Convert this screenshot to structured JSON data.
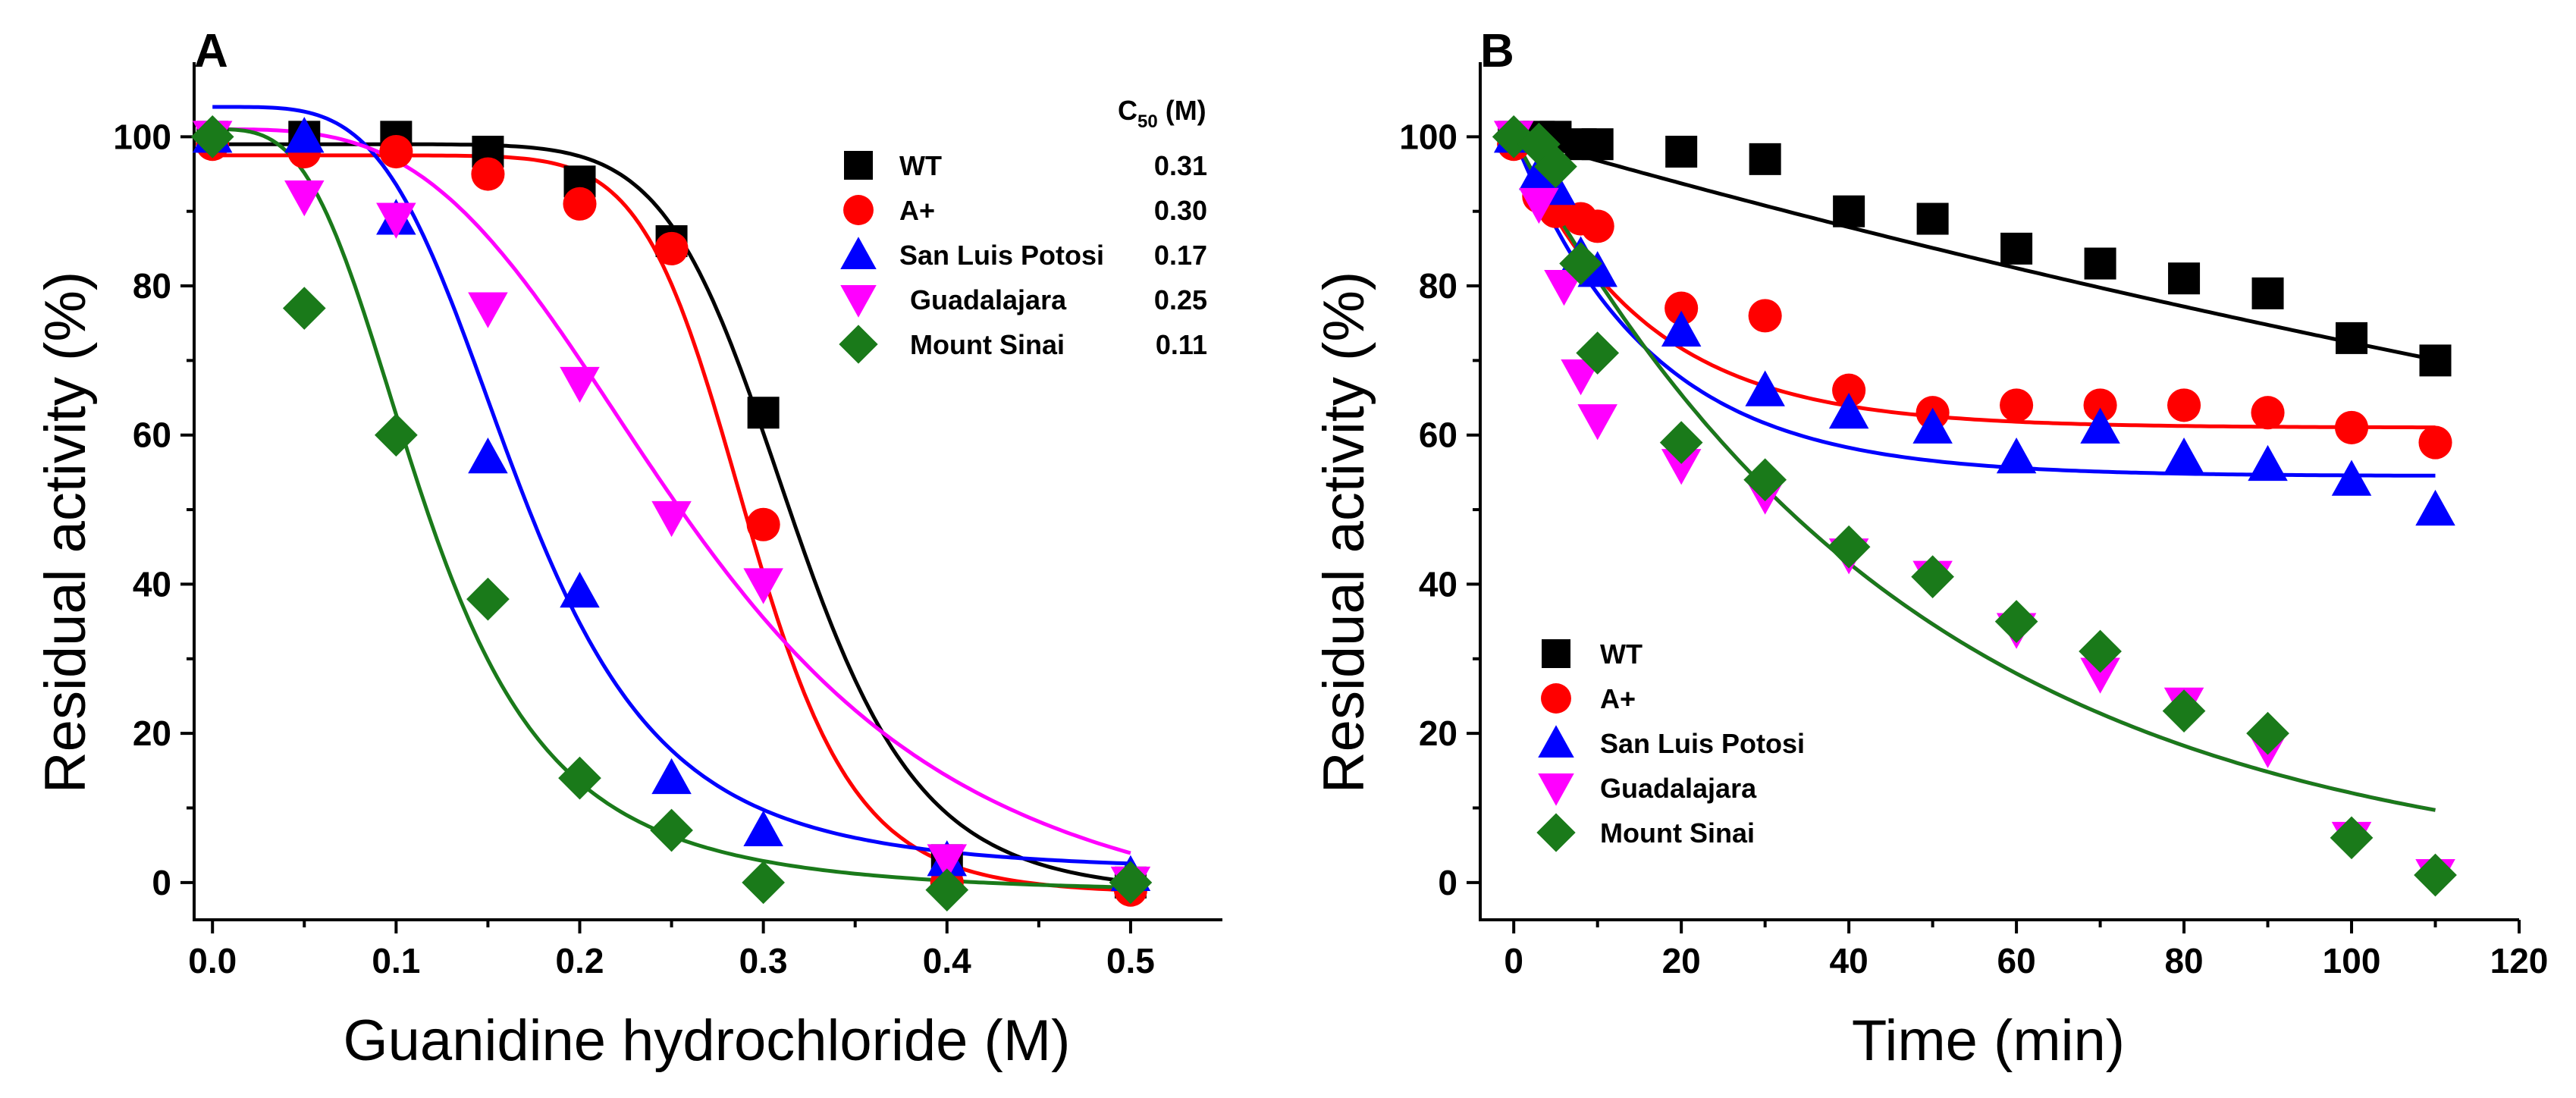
{
  "chart_data": [
    {
      "type": "scatter",
      "panel_label": "A",
      "xlabel": "Guanidine hydrochloride (M)",
      "ylabel": "Residual activity (%)",
      "xlim": [
        -0.01,
        0.55
      ],
      "ylim": [
        -5,
        110
      ],
      "xticks": [
        0.0,
        0.1,
        0.2,
        0.3,
        0.4,
        0.5
      ],
      "xtick_labels": [
        "0.0",
        "0.1",
        "0.2",
        "0.3",
        "0.4",
        "0.5"
      ],
      "yticks": [
        0,
        20,
        40,
        60,
        80,
        100
      ],
      "ytick_labels": [
        "0",
        "20",
        "40",
        "60",
        "80",
        "100"
      ],
      "legend_header": "C50 (M)",
      "legend_header_main": "C",
      "legend_header_sub": "50",
      "legend_header_unit": " (M)",
      "legend_position": "top-right",
      "series": [
        {
          "name": "WT",
          "c50": "0.31",
          "color": "#000000",
          "marker": "square",
          "x": [
            0.0,
            0.05,
            0.1,
            0.15,
            0.2,
            0.25,
            0.3,
            0.4,
            0.5
          ],
          "y": [
            100,
            100,
            100,
            98,
            94,
            86,
            63,
            3,
            0
          ],
          "fit": {
            "top": 99,
            "bottom": -1.5,
            "c": 0.316,
            "n": 9
          }
        },
        {
          "name": "A+",
          "c50": "0.30",
          "color": "#ff0000",
          "marker": "circle",
          "x": [
            0.0,
            0.05,
            0.1,
            0.15,
            0.2,
            0.25,
            0.3,
            0.4,
            0.5
          ],
          "y": [
            99,
            98,
            98,
            95,
            91,
            85,
            48,
            0,
            -1
          ],
          "fit": {
            "top": 97.5,
            "bottom": -1.5,
            "c": 0.292,
            "n": 10
          }
        },
        {
          "name": "San Luis Potosi",
          "c50": "0.17",
          "color": "#0000ff",
          "marker": "triangle-up",
          "x": [
            0.0,
            0.05,
            0.1,
            0.15,
            0.2,
            0.25,
            0.3,
            0.4,
            0.5
          ],
          "y": [
            100,
            100,
            89,
            57,
            39,
            14,
            7,
            3,
            1
          ],
          "fit": {
            "top": 104,
            "bottom": 1.5,
            "c": 0.168,
            "n": 4.2
          }
        },
        {
          "name": "Guadalajara",
          "c50": "0.25",
          "color": "#ff00ff",
          "marker": "triangle-down",
          "x": [
            0.0,
            0.05,
            0.1,
            0.15,
            0.2,
            0.25,
            0.3,
            0.4,
            0.5
          ],
          "y": [
            100,
            92,
            89,
            77,
            67,
            49,
            40,
            3,
            0
          ],
          "fit": {
            "top": 101,
            "bottom": -8,
            "c": 0.265,
            "n": 3.3
          }
        },
        {
          "name": "Mount Sinai",
          "c50": "0.11",
          "color": "#1a7a1a",
          "marker": "diamond",
          "x": [
            0.0,
            0.05,
            0.1,
            0.15,
            0.2,
            0.25,
            0.3,
            0.4,
            0.5
          ],
          "y": [
            100,
            77,
            60,
            38,
            14,
            7,
            0,
            -1,
            0
          ],
          "fit": {
            "top": 101,
            "bottom": -1.5,
            "c": 0.117,
            "n": 3.3
          }
        }
      ]
    },
    {
      "type": "scatter",
      "panel_label": "B",
      "xlabel": "Time (min)",
      "ylabel": "Residual activity (%)",
      "xlim": [
        -4,
        120
      ],
      "ylim": [
        -5,
        110
      ],
      "xticks": [
        0,
        20,
        40,
        60,
        80,
        100,
        120
      ],
      "xtick_labels": [
        "0",
        "20",
        "40",
        "60",
        "80",
        "100",
        "120"
      ],
      "yticks": [
        0,
        20,
        40,
        60,
        80,
        100
      ],
      "ytick_labels": [
        "0",
        "20",
        "40",
        "60",
        "80",
        "100"
      ],
      "legend_position": "bottom-left",
      "series": [
        {
          "name": "WT",
          "color": "#000000",
          "marker": "square",
          "x": [
            0,
            3,
            5,
            8,
            10,
            20,
            30,
            40,
            50,
            60,
            70,
            80,
            90,
            100,
            110
          ],
          "y": [
            100,
            100,
            100,
            99,
            99,
            98,
            97,
            90,
            89,
            85,
            83,
            81,
            79,
            73,
            70
          ],
          "fit": {
            "plateau": 0,
            "k": 0.00323,
            "start": 0,
            "end": 110
          }
        },
        {
          "name": "A+",
          "color": "#ff0000",
          "marker": "circle",
          "x": [
            0,
            3,
            5,
            8,
            10,
            20,
            30,
            40,
            50,
            60,
            70,
            80,
            90,
            100,
            110
          ],
          "y": [
            99,
            92,
            90,
            89,
            88,
            77,
            76,
            66,
            63,
            64,
            64,
            64,
            63,
            61,
            59
          ],
          "fit": {
            "plateau": 61,
            "k": 0.065,
            "start": 0,
            "end": 110
          }
        },
        {
          "name": "San Luis Potosi",
          "color": "#0000ff",
          "marker": "triangle-up",
          "x": [
            0,
            3,
            5,
            8,
            10,
            20,
            30,
            40,
            50,
            60,
            70,
            80,
            90,
            100,
            110
          ],
          "y": [
            100,
            95,
            93,
            84,
            82,
            74,
            66,
            63,
            61,
            57,
            61,
            57,
            56,
            54,
            50
          ],
          "fit": {
            "plateau": 54.5,
            "k": 0.062,
            "start": 0,
            "end": 110
          }
        },
        {
          "name": "Guadalajara",
          "color": "#ff00ff",
          "marker": "triangle-down",
          "x": [
            0,
            3,
            6,
            8,
            10,
            20,
            30,
            40,
            50,
            60,
            70,
            80,
            90,
            100,
            110
          ],
          "y": [
            100,
            91,
            80,
            68,
            62,
            56,
            52,
            44,
            41,
            34,
            28,
            24,
            18,
            6,
            1
          ],
          "fit": {
            "plateau": 0,
            "k": 0.0212,
            "start": 0,
            "end": 110
          }
        },
        {
          "name": "Mount Sinai",
          "color": "#1a7a1a",
          "marker": "diamond",
          "x": [
            0,
            3,
            5,
            8,
            10,
            20,
            30,
            40,
            50,
            60,
            70,
            80,
            90,
            100,
            110
          ],
          "y": [
            100,
            99,
            96,
            83,
            71,
            59,
            54,
            45,
            41,
            35,
            31,
            23,
            20,
            6,
            1
          ],
          "fit": {
            "plateau": 0,
            "k": 0.0212,
            "start": 0,
            "end": 110
          }
        }
      ]
    }
  ]
}
